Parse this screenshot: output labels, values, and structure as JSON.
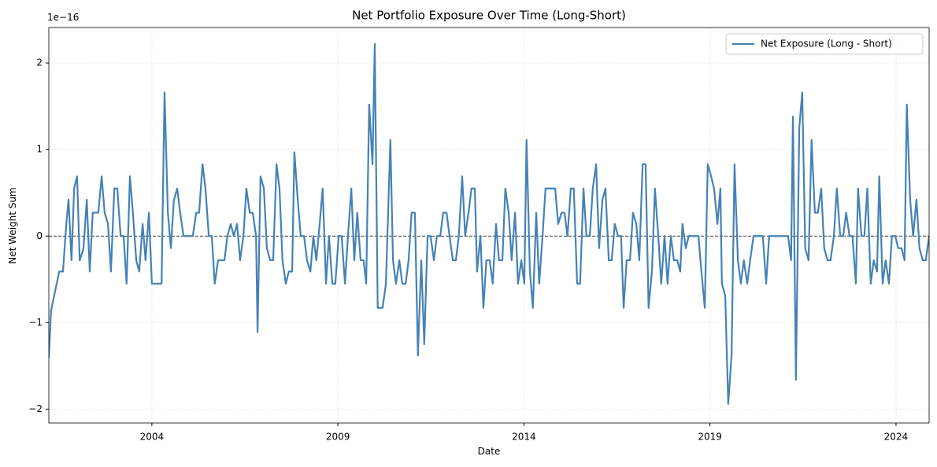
{
  "chart_data": {
    "type": "line",
    "title": "Net Portfolio Exposure Over Time (Long-Short)",
    "x_label": "Date",
    "y_label": "Net Weight Sum",
    "y_offset_label": "1e−16",
    "xlim": [
      2001.23,
      2024.89
    ],
    "ylim": [
      -2.16,
      2.41
    ],
    "xticks": [
      2004,
      2009,
      2014,
      2019,
      2024
    ],
    "yticks": [
      {
        "value": -2,
        "label": "−2"
      },
      {
        "value": -1,
        "label": "−1"
      },
      0,
      1,
      2
    ],
    "grid": true,
    "legend": "upper right",
    "reference_line": 0,
    "x": [
      2001.23,
      2001.29,
      2001.51,
      2001.61,
      2001.7,
      2001.76,
      2001.84,
      2001.91,
      2001.99,
      2002.06,
      2002.16,
      2002.25,
      2002.33,
      2002.41,
      2002.56,
      2002.65,
      2002.73,
      2002.82,
      2002.9,
      2002.99,
      2003.07,
      2003.16,
      2003.24,
      2003.32,
      2003.41,
      2003.49,
      2003.58,
      2003.66,
      2003.75,
      2003.83,
      2003.92,
      2004.0,
      2004.26,
      2004.34,
      2004.43,
      2004.51,
      2004.59,
      2004.68,
      2004.76,
      2004.85,
      2005.1,
      2005.19,
      2005.27,
      2005.36,
      2005.44,
      2005.53,
      2005.61,
      2005.69,
      2005.78,
      2005.95,
      2006.03,
      2006.12,
      2006.2,
      2006.29,
      2006.37,
      2006.46,
      2006.54,
      2006.63,
      2006.71,
      2006.8,
      2006.84,
      2006.92,
      2007.01,
      2007.09,
      2007.18,
      2007.26,
      2007.35,
      2007.43,
      2007.51,
      2007.6,
      2007.68,
      2007.77,
      2007.83,
      2007.92,
      2008.0,
      2008.09,
      2008.17,
      2008.26,
      2008.34,
      2008.42,
      2008.51,
      2008.59,
      2008.68,
      2008.76,
      2008.85,
      2008.93,
      2009.02,
      2009.1,
      2009.19,
      2009.27,
      2009.36,
      2009.44,
      2009.52,
      2009.61,
      2009.69,
      2009.76,
      2009.84,
      2009.93,
      2009.99,
      2010.07,
      2010.2,
      2010.29,
      2010.37,
      2010.41,
      2010.48,
      2010.56,
      2010.65,
      2010.73,
      2010.82,
      2010.9,
      2010.98,
      2011.07,
      2011.15,
      2011.24,
      2011.32,
      2011.41,
      2011.49,
      2011.58,
      2011.66,
      2011.75,
      2011.83,
      2011.92,
      2012.0,
      2012.09,
      2012.17,
      2012.25,
      2012.34,
      2012.42,
      2012.51,
      2012.59,
      2012.68,
      2012.74,
      2012.83,
      2012.91,
      2012.99,
      2013.08,
      2013.16,
      2013.25,
      2013.33,
      2013.42,
      2013.5,
      2013.59,
      2013.67,
      2013.76,
      2013.84,
      2013.93,
      2014.01,
      2014.07,
      2014.16,
      2014.24,
      2014.33,
      2014.41,
      2014.5,
      2014.58,
      2014.67,
      2014.84,
      2014.92,
      2015.01,
      2015.09,
      2015.17,
      2015.26,
      2015.34,
      2015.43,
      2015.51,
      2015.6,
      2015.68,
      2015.77,
      2015.85,
      2015.94,
      2016.02,
      2016.11,
      2016.19,
      2016.28,
      2016.36,
      2016.44,
      2016.53,
      2016.61,
      2016.68,
      2016.76,
      2016.85,
      2016.93,
      2017.02,
      2017.1,
      2017.19,
      2017.27,
      2017.35,
      2017.44,
      2017.52,
      2017.61,
      2017.69,
      2017.78,
      2017.86,
      2017.95,
      2018.03,
      2018.12,
      2018.2,
      2018.26,
      2018.35,
      2018.43,
      2018.69,
      2018.77,
      2018.86,
      2018.94,
      2019.03,
      2019.11,
      2019.2,
      2019.28,
      2019.32,
      2019.41,
      2019.49,
      2019.58,
      2019.66,
      2019.75,
      2019.83,
      2019.91,
      2020.0,
      2020.08,
      2020.17,
      2020.42,
      2020.51,
      2020.59,
      2020.68,
      2021.1,
      2021.18,
      2021.23,
      2021.31,
      2021.4,
      2021.48,
      2021.56,
      2021.65,
      2021.73,
      2021.82,
      2021.9,
      2021.99,
      2022.07,
      2022.16,
      2022.24,
      2022.33,
      2022.41,
      2022.5,
      2022.58,
      2022.66,
      2022.75,
      2022.83,
      2022.92,
      2022.98,
      2023.07,
      2023.15,
      2023.23,
      2023.32,
      2023.4,
      2023.49,
      2023.55,
      2023.64,
      2023.72,
      2023.81,
      2023.89,
      2023.98,
      2024.06,
      2024.15,
      2024.23,
      2024.29,
      2024.38,
      2024.46,
      2024.55,
      2024.63,
      2024.72,
      2024.8,
      2024.89
    ],
    "series": [
      {
        "name": "Net Exposure (Long - Short)",
        "color": "#4682b4",
        "values": [
          -1.41,
          -0.86,
          -0.41,
          -0.41,
          0.14,
          0.42,
          -0.28,
          0.55,
          0.69,
          -0.28,
          -0.15,
          0.42,
          -0.41,
          0.27,
          0.27,
          0.69,
          0.27,
          0.14,
          -0.41,
          0.55,
          0.55,
          0,
          0,
          -0.55,
          0.69,
          0.27,
          -0.28,
          -0.41,
          0.14,
          -0.28,
          0.27,
          -0.55,
          -0.55,
          1.66,
          0.27,
          -0.14,
          0.41,
          0.55,
          0.27,
          0,
          0,
          0.27,
          0.27,
          0.83,
          0.55,
          0,
          0,
          -0.55,
          -0.28,
          -0.28,
          0,
          0.14,
          0,
          0.14,
          -0.28,
          0,
          0.55,
          0.27,
          0.27,
          0,
          -1.11,
          0.69,
          0.55,
          -0.14,
          -0.28,
          -0.28,
          0.83,
          0.55,
          -0.28,
          -0.55,
          -0.41,
          -0.41,
          0.97,
          0.42,
          0,
          0,
          -0.28,
          -0.41,
          0,
          -0.28,
          0.14,
          0.55,
          -0.55,
          0,
          -0.55,
          -0.55,
          0,
          0,
          -0.55,
          0,
          0.55,
          -0.28,
          0.27,
          -0.28,
          -0.28,
          -0.55,
          1.52,
          0.83,
          2.22,
          -0.83,
          -0.83,
          -0.55,
          0.55,
          1.11,
          -0.28,
          -0.55,
          -0.28,
          -0.55,
          -0.55,
          -0.28,
          0.27,
          0.27,
          -1.38,
          -0.28,
          -1.25,
          0,
          0,
          -0.28,
          0,
          0,
          0.27,
          0.27,
          0,
          -0.28,
          -0.28,
          0,
          0.69,
          0,
          0.27,
          0.55,
          0.55,
          -0.41,
          0,
          -0.83,
          -0.28,
          -0.28,
          -0.55,
          0.14,
          -0.28,
          -0.28,
          0.55,
          0.27,
          -0.28,
          0.27,
          -0.55,
          -0.28,
          -0.55,
          1.11,
          -0.41,
          -0.83,
          0.27,
          -0.55,
          0,
          0.55,
          0.55,
          0.55,
          0.14,
          0.27,
          0.27,
          0,
          0.55,
          0.55,
          -0.55,
          -0.55,
          0.55,
          0,
          0,
          0.55,
          0.83,
          -0.14,
          0.42,
          0.55,
          -0.28,
          -0.28,
          0.14,
          0,
          0,
          -0.83,
          -0.28,
          -0.28,
          0.27,
          0.14,
          -0.28,
          0.83,
          0.83,
          -0.83,
          -0.41,
          0.55,
          0,
          -0.55,
          0,
          -0.55,
          0,
          -0.28,
          -0.28,
          -0.41,
          0.14,
          -0.14,
          0,
          0,
          -0.41,
          -0.83,
          0.83,
          0.69,
          0.55,
          0.14,
          0.55,
          -0.55,
          -0.69,
          -1.94,
          -1.38,
          0.83,
          -0.28,
          -0.55,
          -0.28,
          -0.55,
          -0.28,
          0,
          0,
          -0.55,
          0,
          0,
          0,
          -0.28,
          1.38,
          -1.66,
          1.25,
          1.66,
          -0.14,
          -0.28,
          1.11,
          0.27,
          0.27,
          0.55,
          -0.14,
          -0.28,
          -0.28,
          0,
          0.55,
          0,
          0,
          0.27,
          0,
          0,
          -0.55,
          0.55,
          0,
          0,
          0.55,
          -0.55,
          -0.28,
          -0.41,
          0.69,
          -0.55,
          -0.28,
          -0.55,
          0,
          0,
          -0.14,
          -0.14,
          -0.28,
          1.52,
          0.42,
          0,
          0.42,
          -0.14,
          -0.28,
          -0.28,
          0
        ]
      }
    ]
  }
}
